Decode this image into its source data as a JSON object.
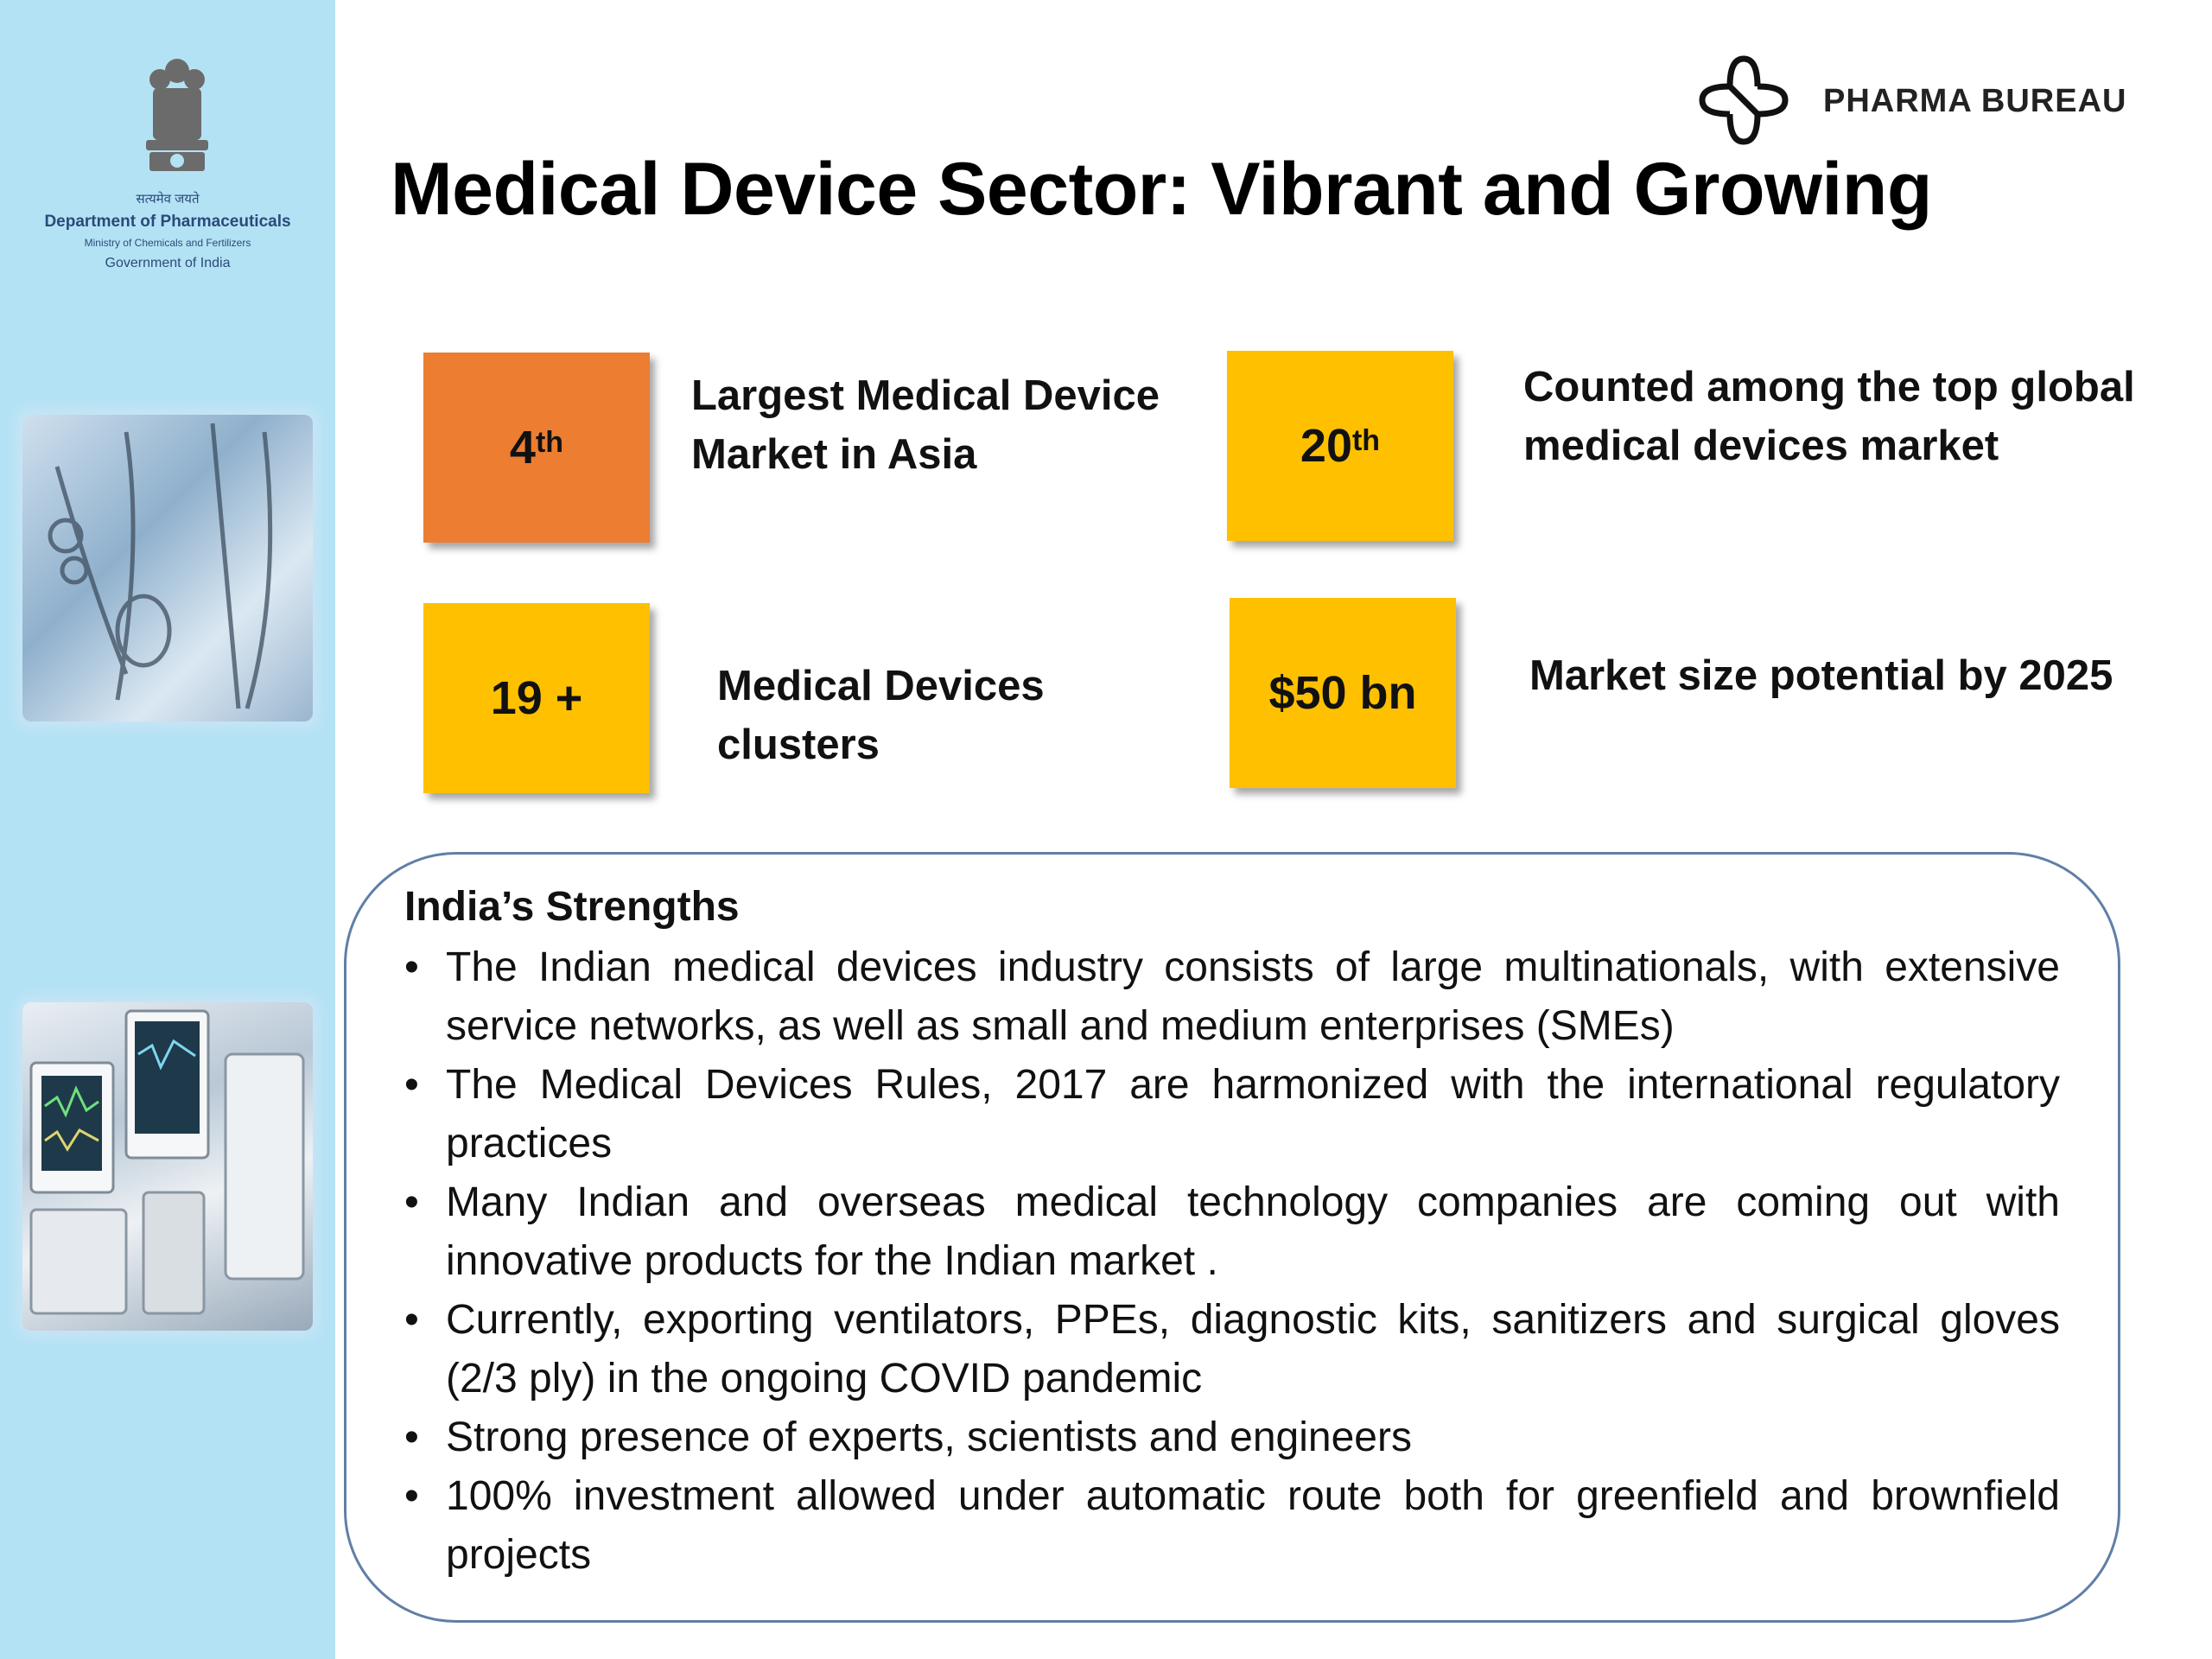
{
  "sidebar": {
    "emblem_icon": "state-emblem-icon",
    "dept_hindi": "सत्यमेव जयते",
    "dept_name": "Department of Pharmaceuticals",
    "dept_ministry": "Ministry of Chemicals and Fertilizers",
    "dept_gov": "Government of India",
    "photo1": "medical-instruments-photo",
    "photo2": "medical-monitors-photo",
    "color": "#b4e2f5"
  },
  "header": {
    "logo_icon": "pharma-bureau-logo-icon",
    "brand": "PHARMA BUREAU",
    "title": "Medical Device Sector: Vibrant and Growing"
  },
  "stats": [
    {
      "value": "4",
      "suffix": "th",
      "caption": "Largest Medical Device Market in Asia",
      "color": "#ed7d31"
    },
    {
      "value": "20",
      "suffix": "th",
      "caption": "Counted among the top global medical devices market",
      "color": "#ffc000"
    },
    {
      "value": "19 +",
      "suffix": "",
      "caption": "Medical Devices clusters",
      "color": "#ffc000"
    },
    {
      "value": "$50 bn",
      "suffix": "",
      "caption": "Market size potential by 2025",
      "color": "#ffc000"
    }
  ],
  "strengths": {
    "heading": "India’s Strengths",
    "bullet": "•",
    "items": [
      "The Indian medical devices industry consists of large multinationals, with extensive service networks, as well as small and medium enterprises (SMEs)",
      "The Medical Devices Rules, 2017 are harmonized with the international regulatory practices",
      "Many Indian and overseas medical technology companies are coming out with innovative products for the Indian market .",
      "Currently, exporting ventilators, PPEs, diagnostic kits, sanitizers and surgical gloves (2/3 ply) in the ongoing COVID pandemic",
      "Strong presence of experts, scientists and engineers",
      "100% investment allowed under automatic route both for greenfield and brownfield projects"
    ]
  }
}
